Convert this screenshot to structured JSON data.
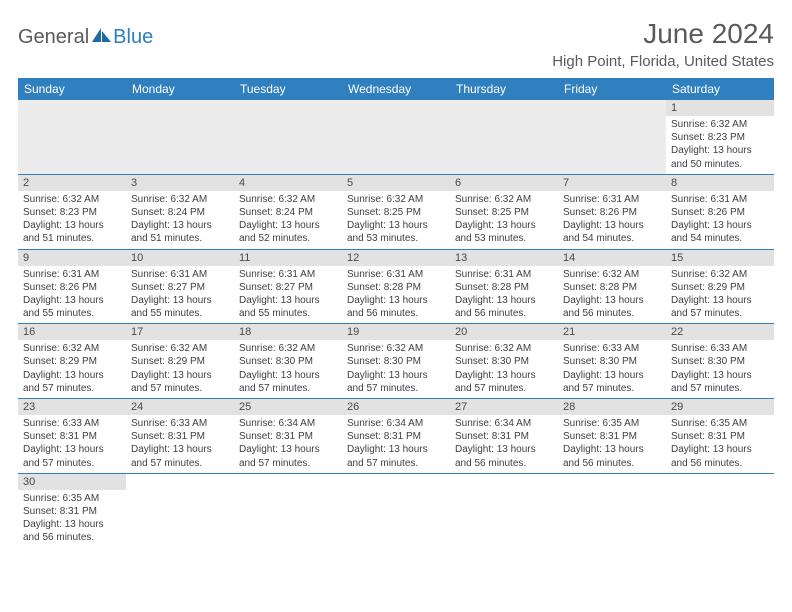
{
  "logo": {
    "part1": "General",
    "part2": "Blue"
  },
  "title": "June 2024",
  "location": "High Point, Florida, United States",
  "colors": {
    "headerBlue": "#3080c0",
    "dayNumBg": "#e2e2e2",
    "blankBg": "#ececec",
    "rowBorder": "#3080c0",
    "textGray": "#5a5a5a",
    "logoBlue": "#2a7fbf"
  },
  "dayNames": [
    "Sunday",
    "Monday",
    "Tuesday",
    "Wednesday",
    "Thursday",
    "Friday",
    "Saturday"
  ],
  "firstDayIndex": 6,
  "days": [
    {
      "n": 1,
      "sr": "6:32 AM",
      "ss": "8:23 PM",
      "dl": "13 hours and 50 minutes."
    },
    {
      "n": 2,
      "sr": "6:32 AM",
      "ss": "8:23 PM",
      "dl": "13 hours and 51 minutes."
    },
    {
      "n": 3,
      "sr": "6:32 AM",
      "ss": "8:24 PM",
      "dl": "13 hours and 51 minutes."
    },
    {
      "n": 4,
      "sr": "6:32 AM",
      "ss": "8:24 PM",
      "dl": "13 hours and 52 minutes."
    },
    {
      "n": 5,
      "sr": "6:32 AM",
      "ss": "8:25 PM",
      "dl": "13 hours and 53 minutes."
    },
    {
      "n": 6,
      "sr": "6:32 AM",
      "ss": "8:25 PM",
      "dl": "13 hours and 53 minutes."
    },
    {
      "n": 7,
      "sr": "6:31 AM",
      "ss": "8:26 PM",
      "dl": "13 hours and 54 minutes."
    },
    {
      "n": 8,
      "sr": "6:31 AM",
      "ss": "8:26 PM",
      "dl": "13 hours and 54 minutes."
    },
    {
      "n": 9,
      "sr": "6:31 AM",
      "ss": "8:26 PM",
      "dl": "13 hours and 55 minutes."
    },
    {
      "n": 10,
      "sr": "6:31 AM",
      "ss": "8:27 PM",
      "dl": "13 hours and 55 minutes."
    },
    {
      "n": 11,
      "sr": "6:31 AM",
      "ss": "8:27 PM",
      "dl": "13 hours and 55 minutes."
    },
    {
      "n": 12,
      "sr": "6:31 AM",
      "ss": "8:28 PM",
      "dl": "13 hours and 56 minutes."
    },
    {
      "n": 13,
      "sr": "6:31 AM",
      "ss": "8:28 PM",
      "dl": "13 hours and 56 minutes."
    },
    {
      "n": 14,
      "sr": "6:32 AM",
      "ss": "8:28 PM",
      "dl": "13 hours and 56 minutes."
    },
    {
      "n": 15,
      "sr": "6:32 AM",
      "ss": "8:29 PM",
      "dl": "13 hours and 57 minutes."
    },
    {
      "n": 16,
      "sr": "6:32 AM",
      "ss": "8:29 PM",
      "dl": "13 hours and 57 minutes."
    },
    {
      "n": 17,
      "sr": "6:32 AM",
      "ss": "8:29 PM",
      "dl": "13 hours and 57 minutes."
    },
    {
      "n": 18,
      "sr": "6:32 AM",
      "ss": "8:30 PM",
      "dl": "13 hours and 57 minutes."
    },
    {
      "n": 19,
      "sr": "6:32 AM",
      "ss": "8:30 PM",
      "dl": "13 hours and 57 minutes."
    },
    {
      "n": 20,
      "sr": "6:32 AM",
      "ss": "8:30 PM",
      "dl": "13 hours and 57 minutes."
    },
    {
      "n": 21,
      "sr": "6:33 AM",
      "ss": "8:30 PM",
      "dl": "13 hours and 57 minutes."
    },
    {
      "n": 22,
      "sr": "6:33 AM",
      "ss": "8:30 PM",
      "dl": "13 hours and 57 minutes."
    },
    {
      "n": 23,
      "sr": "6:33 AM",
      "ss": "8:31 PM",
      "dl": "13 hours and 57 minutes."
    },
    {
      "n": 24,
      "sr": "6:33 AM",
      "ss": "8:31 PM",
      "dl": "13 hours and 57 minutes."
    },
    {
      "n": 25,
      "sr": "6:34 AM",
      "ss": "8:31 PM",
      "dl": "13 hours and 57 minutes."
    },
    {
      "n": 26,
      "sr": "6:34 AM",
      "ss": "8:31 PM",
      "dl": "13 hours and 57 minutes."
    },
    {
      "n": 27,
      "sr": "6:34 AM",
      "ss": "8:31 PM",
      "dl": "13 hours and 56 minutes."
    },
    {
      "n": 28,
      "sr": "6:35 AM",
      "ss": "8:31 PM",
      "dl": "13 hours and 56 minutes."
    },
    {
      "n": 29,
      "sr": "6:35 AM",
      "ss": "8:31 PM",
      "dl": "13 hours and 56 minutes."
    },
    {
      "n": 30,
      "sr": "6:35 AM",
      "ss": "8:31 PM",
      "dl": "13 hours and 56 minutes."
    }
  ],
  "labels": {
    "sunrise": "Sunrise:",
    "sunset": "Sunset:",
    "daylight": "Daylight:"
  }
}
